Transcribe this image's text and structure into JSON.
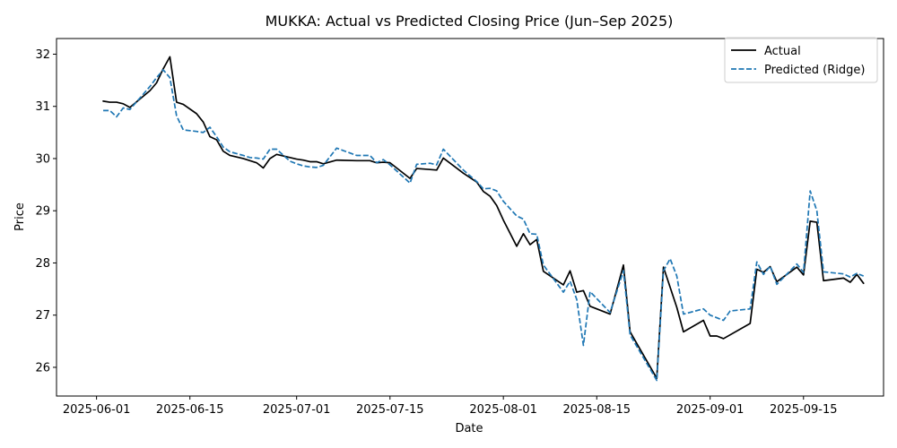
{
  "chart_data": {
    "type": "line",
    "title": "MUKKA: Actual vs Predicted Closing Price (Jun–Sep 2025)",
    "xlabel": "Date",
    "ylabel": "Price",
    "x_type": "date",
    "xlim": [
      "2025-05-26",
      "2025-09-27"
    ],
    "ylim": [
      25.45,
      32.3
    ],
    "x_ticks": [
      "2025-06-01",
      "2025-06-15",
      "2025-07-01",
      "2025-07-15",
      "2025-08-01",
      "2025-08-15",
      "2025-09-01",
      "2025-09-15"
    ],
    "y_ticks": [
      26,
      27,
      28,
      29,
      30,
      31,
      32
    ],
    "grid": false,
    "legend": "upper right",
    "series": [
      {
        "name": "Actual",
        "color": "#000000",
        "style": "solid",
        "points": [
          [
            "2025-06-02",
            31.1
          ],
          [
            "2025-06-03",
            31.08
          ],
          [
            "2025-06-04",
            31.08
          ],
          [
            "2025-06-05",
            31.05
          ],
          [
            "2025-06-06",
            30.98
          ],
          [
            "2025-06-09",
            31.3
          ],
          [
            "2025-06-10",
            31.45
          ],
          [
            "2025-06-11",
            31.72
          ],
          [
            "2025-06-12",
            31.95
          ],
          [
            "2025-06-13",
            31.08
          ],
          [
            "2025-06-14",
            31.04
          ],
          [
            "2025-06-16",
            30.86
          ],
          [
            "2025-06-17",
            30.7
          ],
          [
            "2025-06-18",
            30.42
          ],
          [
            "2025-06-19",
            30.36
          ],
          [
            "2025-06-20",
            30.14
          ],
          [
            "2025-06-21",
            30.06
          ],
          [
            "2025-06-23",
            30.0
          ],
          [
            "2025-06-24",
            29.96
          ],
          [
            "2025-06-25",
            29.92
          ],
          [
            "2025-06-26",
            29.82
          ],
          [
            "2025-06-27",
            30.0
          ],
          [
            "2025-06-28",
            30.08
          ],
          [
            "2025-06-30",
            30.02
          ],
          [
            "2025-07-01",
            29.99
          ],
          [
            "2025-07-02",
            29.97
          ],
          [
            "2025-07-03",
            29.94
          ],
          [
            "2025-07-04",
            29.94
          ],
          [
            "2025-07-05",
            29.9
          ],
          [
            "2025-07-07",
            29.97
          ],
          [
            "2025-07-10",
            29.96
          ],
          [
            "2025-07-12",
            29.96
          ],
          [
            "2025-07-13",
            29.92
          ],
          [
            "2025-07-14",
            29.93
          ],
          [
            "2025-07-15",
            29.92
          ],
          [
            "2025-07-18",
            29.62
          ],
          [
            "2025-07-19",
            29.81
          ],
          [
            "2025-07-21",
            29.79
          ],
          [
            "2025-07-22",
            29.78
          ],
          [
            "2025-07-23",
            30.01
          ],
          [
            "2025-07-26",
            29.72
          ],
          [
            "2025-07-28",
            29.55
          ],
          [
            "2025-07-29",
            29.37
          ],
          [
            "2025-07-30",
            29.28
          ],
          [
            "2025-07-31",
            29.1
          ],
          [
            "2025-08-01",
            28.82
          ],
          [
            "2025-08-03",
            28.32
          ],
          [
            "2025-08-04",
            28.56
          ],
          [
            "2025-08-05",
            28.35
          ],
          [
            "2025-08-06",
            28.45
          ],
          [
            "2025-08-07",
            27.84
          ],
          [
            "2025-08-10",
            27.58
          ],
          [
            "2025-08-11",
            27.85
          ],
          [
            "2025-08-12",
            27.44
          ],
          [
            "2025-08-13",
            27.47
          ],
          [
            "2025-08-14",
            27.17
          ],
          [
            "2025-08-17",
            27.02
          ],
          [
            "2025-08-19",
            27.96
          ],
          [
            "2025-08-20",
            26.68
          ],
          [
            "2025-08-24",
            25.79
          ],
          [
            "2025-08-25",
            27.92
          ],
          [
            "2025-08-27",
            27.15
          ],
          [
            "2025-08-28",
            26.68
          ],
          [
            "2025-08-31",
            26.9
          ],
          [
            "2025-09-01",
            26.6
          ],
          [
            "2025-09-02",
            26.6
          ],
          [
            "2025-09-03",
            26.55
          ],
          [
            "2025-09-07",
            26.84
          ],
          [
            "2025-09-08",
            27.88
          ],
          [
            "2025-09-09",
            27.82
          ],
          [
            "2025-09-10",
            27.93
          ],
          [
            "2025-09-11",
            27.64
          ],
          [
            "2025-09-14",
            27.92
          ],
          [
            "2025-09-15",
            27.77
          ],
          [
            "2025-09-16",
            28.8
          ],
          [
            "2025-09-17",
            28.78
          ],
          [
            "2025-09-18",
            27.66
          ],
          [
            "2025-09-21",
            27.71
          ],
          [
            "2025-09-22",
            27.63
          ],
          [
            "2025-09-23",
            27.78
          ],
          [
            "2025-09-24",
            27.61
          ]
        ]
      },
      {
        "name": "Predicted (Ridge)",
        "color": "#1f77b4",
        "style": "dashed",
        "points": [
          [
            "2025-06-02",
            30.92
          ],
          [
            "2025-06-03",
            30.92
          ],
          [
            "2025-06-04",
            30.8
          ],
          [
            "2025-06-05",
            30.97
          ],
          [
            "2025-06-06",
            30.94
          ],
          [
            "2025-06-09",
            31.38
          ],
          [
            "2025-06-10",
            31.55
          ],
          [
            "2025-06-11",
            31.7
          ],
          [
            "2025-06-12",
            31.55
          ],
          [
            "2025-06-13",
            30.82
          ],
          [
            "2025-06-14",
            30.55
          ],
          [
            "2025-06-16",
            30.52
          ],
          [
            "2025-06-17",
            30.5
          ],
          [
            "2025-06-18",
            30.6
          ],
          [
            "2025-06-19",
            30.42
          ],
          [
            "2025-06-20",
            30.22
          ],
          [
            "2025-06-21",
            30.13
          ],
          [
            "2025-06-23",
            30.06
          ],
          [
            "2025-06-24",
            30.02
          ],
          [
            "2025-06-25",
            30.01
          ],
          [
            "2025-06-26",
            29.99
          ],
          [
            "2025-06-27",
            30.18
          ],
          [
            "2025-06-28",
            30.18
          ],
          [
            "2025-06-30",
            29.95
          ],
          [
            "2025-07-01",
            29.9
          ],
          [
            "2025-07-02",
            29.86
          ],
          [
            "2025-07-03",
            29.84
          ],
          [
            "2025-07-04",
            29.83
          ],
          [
            "2025-07-05",
            29.87
          ],
          [
            "2025-07-07",
            30.2
          ],
          [
            "2025-07-10",
            30.06
          ],
          [
            "2025-07-12",
            30.06
          ],
          [
            "2025-07-13",
            29.92
          ],
          [
            "2025-07-14",
            29.98
          ],
          [
            "2025-07-15",
            29.88
          ],
          [
            "2025-07-18",
            29.53
          ],
          [
            "2025-07-19",
            29.89
          ],
          [
            "2025-07-21",
            29.91
          ],
          [
            "2025-07-22",
            29.88
          ],
          [
            "2025-07-23",
            30.18
          ],
          [
            "2025-07-26",
            29.78
          ],
          [
            "2025-07-28",
            29.56
          ],
          [
            "2025-07-29",
            29.42
          ],
          [
            "2025-07-30",
            29.43
          ],
          [
            "2025-07-31",
            29.38
          ],
          [
            "2025-08-01",
            29.18
          ],
          [
            "2025-08-03",
            28.9
          ],
          [
            "2025-08-04",
            28.84
          ],
          [
            "2025-08-05",
            28.56
          ],
          [
            "2025-08-06",
            28.55
          ],
          [
            "2025-08-07",
            27.96
          ],
          [
            "2025-08-10",
            27.44
          ],
          [
            "2025-08-11",
            27.65
          ],
          [
            "2025-08-12",
            27.3
          ],
          [
            "2025-08-13",
            26.42
          ],
          [
            "2025-08-14",
            27.45
          ],
          [
            "2025-08-17",
            27.05
          ],
          [
            "2025-08-19",
            27.85
          ],
          [
            "2025-08-20",
            26.62
          ],
          [
            "2025-08-24",
            25.75
          ],
          [
            "2025-08-25",
            27.85
          ],
          [
            "2025-08-26",
            28.08
          ],
          [
            "2025-08-27",
            27.75
          ],
          [
            "2025-08-28",
            27.02
          ],
          [
            "2025-08-31",
            27.12
          ],
          [
            "2025-09-01",
            27.0
          ],
          [
            "2025-09-03",
            26.9
          ],
          [
            "2025-09-04",
            27.08
          ],
          [
            "2025-09-07",
            27.12
          ],
          [
            "2025-09-08",
            28.02
          ],
          [
            "2025-09-09",
            27.78
          ],
          [
            "2025-09-10",
            27.94
          ],
          [
            "2025-09-11",
            27.59
          ],
          [
            "2025-09-14",
            27.98
          ],
          [
            "2025-09-15",
            27.82
          ],
          [
            "2025-09-16",
            29.38
          ],
          [
            "2025-09-17",
            29.0
          ],
          [
            "2025-09-18",
            27.83
          ],
          [
            "2025-09-21",
            27.79
          ],
          [
            "2025-09-22",
            27.73
          ],
          [
            "2025-09-23",
            27.8
          ],
          [
            "2025-09-24",
            27.75
          ]
        ]
      }
    ]
  }
}
